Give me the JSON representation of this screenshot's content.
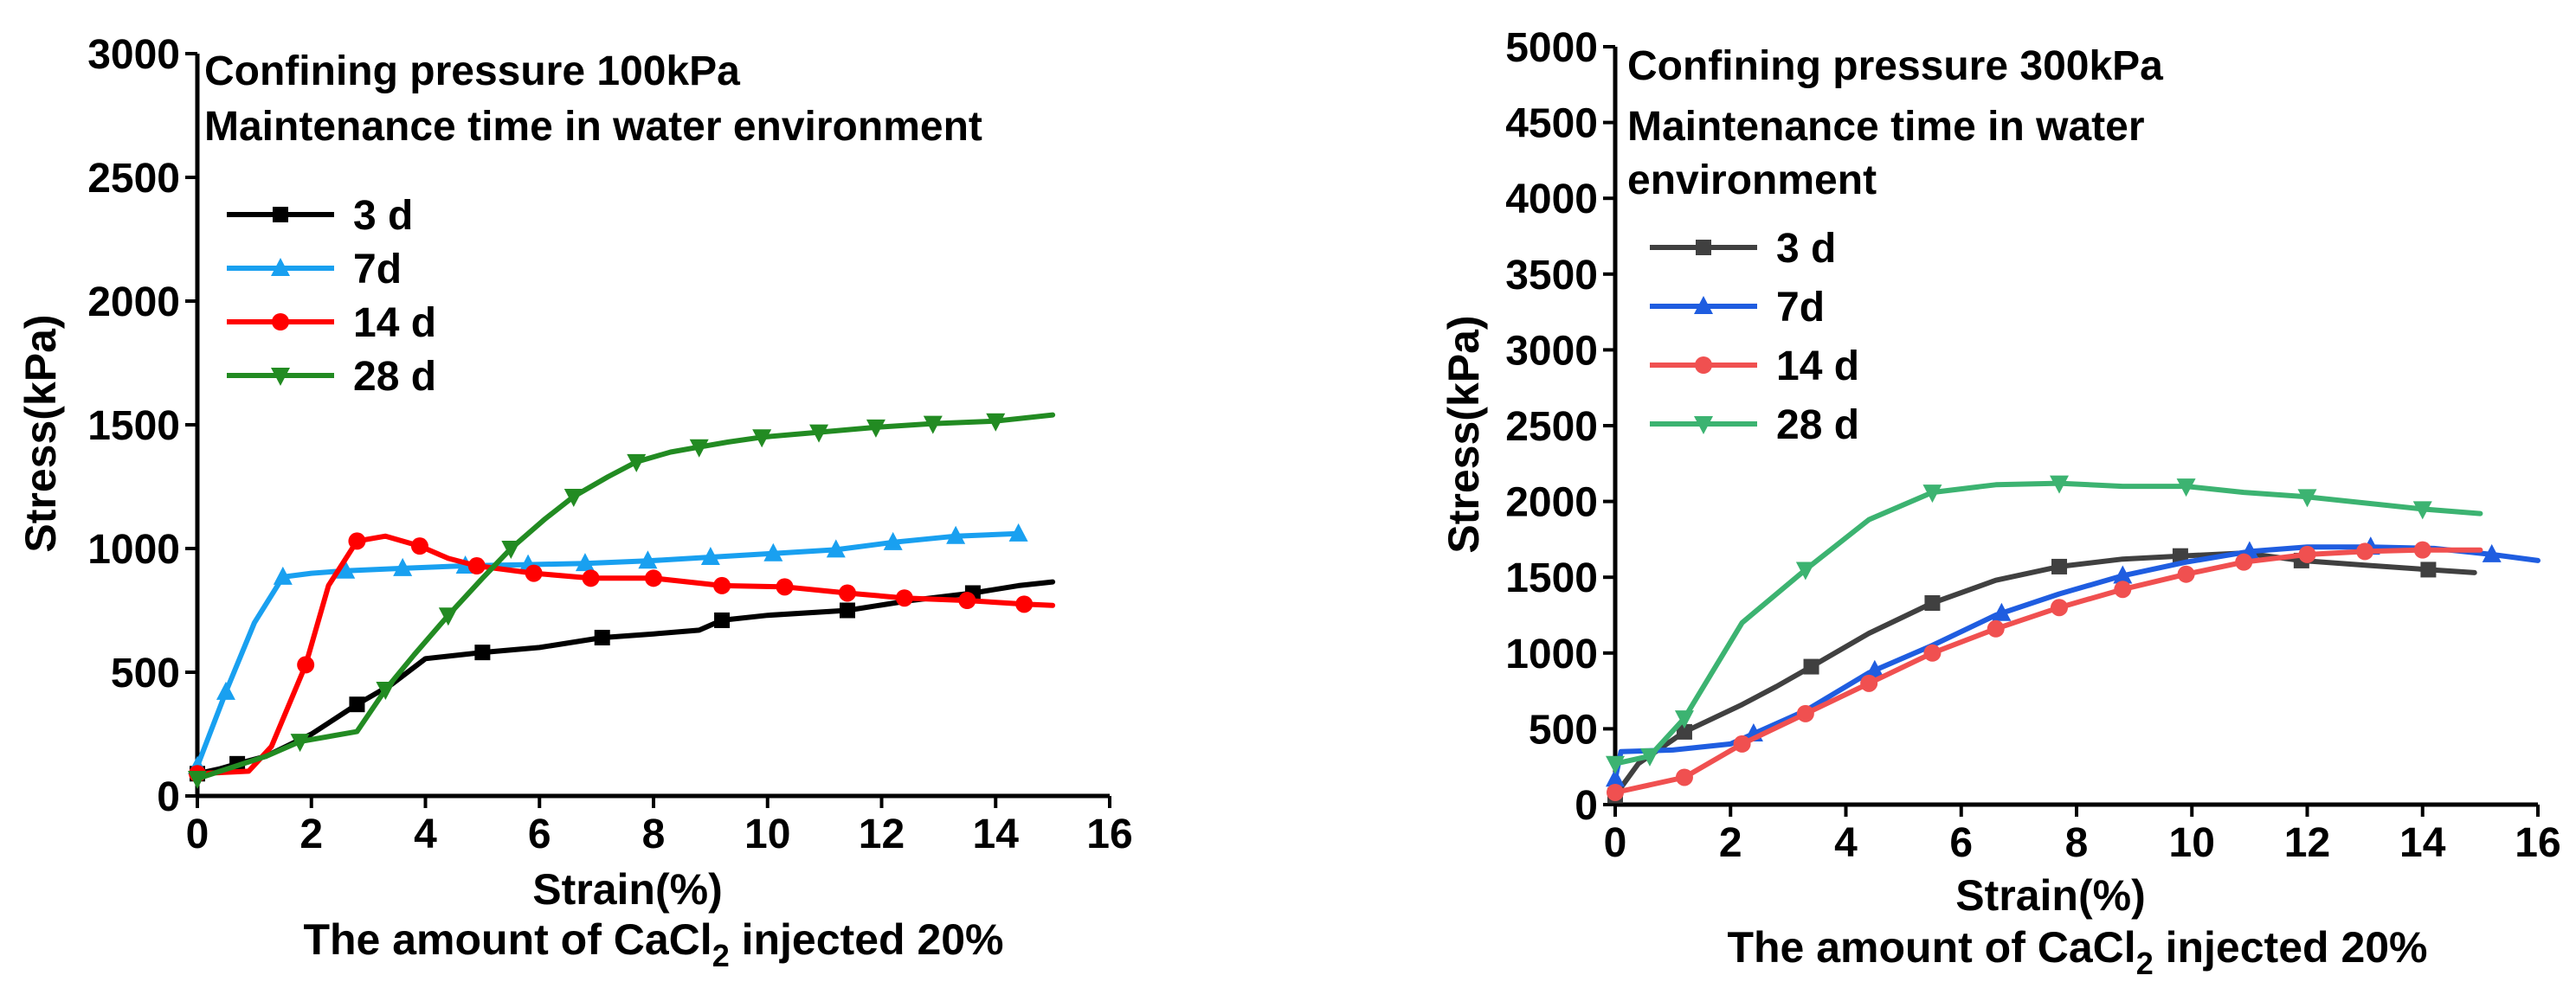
{
  "chart_data": [
    {
      "type": "line",
      "title": "Confining pressure 100kPa",
      "subtitle": "Maintenance time in water environment",
      "subtitle_lines": [
        "Maintenance time in water environment"
      ],
      "xlabel": "Strain(%)",
      "ylabel": "Stress(kPa)",
      "caption": {
        "prefix": "The amount of CaCl",
        "subscript": "2",
        "suffix": " injected 20%"
      },
      "xlim": [
        0,
        16
      ],
      "ylim": [
        0,
        3000
      ],
      "xticks": [
        0,
        2,
        4,
        6,
        8,
        10,
        12,
        14,
        16
      ],
      "yticks": [
        0,
        500,
        1000,
        1500,
        2000,
        2500,
        3000
      ],
      "legend_position": "top-left",
      "series": [
        {
          "name": "3 d",
          "color": "#000000",
          "marker": "square",
          "x": [
            0,
            0.4,
            0.7,
            1.2,
            2,
            2.8,
            3.4,
            4,
            5,
            6,
            7.1,
            8,
            8.8,
            9.2,
            10,
            11.4,
            12.5,
            13.6,
            14.4,
            15
          ],
          "y": [
            90,
            110,
            130,
            160,
            250,
            370,
            450,
            555,
            580,
            600,
            640,
            655,
            670,
            710,
            730,
            750,
            790,
            820,
            850,
            865
          ],
          "markers_x": [
            0,
            0.7,
            2.8,
            5,
            7.1,
            9.2,
            11.4,
            13.6
          ]
        },
        {
          "name": "7d",
          "color": "#19a0f0",
          "marker": "triangle-up",
          "x": [
            0,
            0.5,
            1.0,
            1.5,
            2.0,
            2.6,
            3.6,
            4.7,
            5.8,
            6.8,
            7.9,
            9.0,
            10.1,
            11.2,
            12.2,
            13.3,
            14.4
          ],
          "y": [
            120,
            420,
            700,
            885,
            900,
            910,
            920,
            930,
            935,
            940,
            950,
            965,
            980,
            995,
            1025,
            1050,
            1060
          ],
          "markers_x": [
            0,
            0.5,
            1.5,
            2.6,
            3.6,
            4.7,
            5.8,
            6.8,
            7.9,
            9.0,
            10.1,
            11.2,
            12.2,
            13.3,
            14.4
          ]
        },
        {
          "name": "14 d",
          "color": "#ff0000",
          "marker": "circle",
          "x": [
            0,
            0.9,
            1.3,
            1.9,
            2.3,
            2.8,
            3.3,
            3.9,
            4.4,
            4.9,
            5.9,
            6.9,
            8.0,
            9.2,
            10.3,
            11.4,
            12.4,
            13.5,
            14.5,
            15
          ],
          "y": [
            90,
            100,
            200,
            530,
            850,
            1030,
            1050,
            1010,
            960,
            930,
            900,
            880,
            880,
            850,
            845,
            820,
            800,
            790,
            775,
            770
          ],
          "markers_x": [
            0,
            1.9,
            2.8,
            3.9,
            4.9,
            5.9,
            6.9,
            8.0,
            9.2,
            10.3,
            11.4,
            12.4,
            13.5,
            14.5
          ]
        },
        {
          "name": "28 d",
          "color": "#228b22",
          "marker": "triangle-down",
          "x": [
            0,
            1.2,
            1.8,
            2.8,
            3.3,
            3.8,
            4.4,
            5.0,
            5.5,
            6.1,
            6.6,
            7.2,
            7.7,
            8.3,
            8.8,
            9.3,
            9.9,
            10.9,
            11.9,
            12.9,
            14.0,
            15
          ],
          "y": [
            70,
            160,
            220,
            260,
            430,
            570,
            730,
            880,
            1000,
            1120,
            1210,
            1290,
            1350,
            1390,
            1410,
            1430,
            1450,
            1470,
            1490,
            1505,
            1515,
            1540
          ],
          "markers_x": [
            0,
            1.8,
            3.3,
            4.4,
            5.5,
            6.6,
            7.7,
            8.8,
            9.9,
            10.9,
            11.9,
            12.9,
            14.0
          ]
        }
      ]
    },
    {
      "type": "line",
      "title": "Confining pressure 300kPa",
      "subtitle": "Maintenance time in water environment",
      "subtitle_lines": [
        "Maintenance time in water",
        "environment"
      ],
      "xlabel": "Strain(%)",
      "ylabel": "Stress(kPa)",
      "caption": {
        "prefix": "The amount of CaCl",
        "subscript": "2",
        "suffix": " injected 20%"
      },
      "xlim": [
        0,
        16
      ],
      "ylim": [
        0,
        5000
      ],
      "xticks": [
        0,
        2,
        4,
        6,
        8,
        10,
        12,
        14,
        16
      ],
      "yticks": [
        0,
        500,
        1000,
        1500,
        2000,
        2500,
        3000,
        3500,
        4000,
        4500,
        5000
      ],
      "legend_position": "top-left",
      "series": [
        {
          "name": "3 d",
          "color": "#404040",
          "marker": "square",
          "x": [
            0,
            0.4,
            1.2,
            2.2,
            2.8,
            3.4,
            4.4,
            5.5,
            6.6,
            7.7,
            8.8,
            9.8,
            10.9,
            11.9,
            13.0,
            14.1,
            14.9
          ],
          "y": [
            60,
            270,
            480,
            660,
            780,
            910,
            1130,
            1330,
            1480,
            1570,
            1620,
            1640,
            1660,
            1610,
            1580,
            1550,
            1530
          ],
          "markers_x": [
            0,
            1.2,
            3.4,
            5.5,
            7.7,
            9.8,
            11.9,
            14.1
          ]
        },
        {
          "name": "7d",
          "color": "#1f5de0",
          "marker": "triangle-up",
          "x": [
            0,
            0.1,
            1.0,
            2.0,
            3.3,
            4.4,
            5.5,
            6.6,
            7.7,
            8.8,
            9.9,
            11.0,
            12.0,
            13.1,
            14.2,
            15.2,
            16
          ],
          "y": [
            170,
            350,
            360,
            400,
            620,
            870,
            1050,
            1250,
            1390,
            1510,
            1600,
            1670,
            1700,
            1700,
            1690,
            1650,
            1610
          ],
          "markers_x": [
            0,
            2.4,
            4.5,
            6.7,
            8.8,
            11.0,
            13.1,
            15.2
          ]
        },
        {
          "name": "14 d",
          "color": "#f05050",
          "marker": "circle",
          "x": [
            0,
            1.2,
            2.2,
            3.3,
            4.4,
            5.5,
            6.6,
            7.7,
            8.8,
            9.9,
            10.9,
            12.0,
            13.0,
            14.0,
            15.0
          ],
          "y": [
            80,
            180,
            400,
            600,
            800,
            1000,
            1160,
            1300,
            1420,
            1520,
            1600,
            1650,
            1670,
            1680,
            1680
          ],
          "markers_x": [
            0,
            1.2,
            2.2,
            3.3,
            4.4,
            5.5,
            6.6,
            7.7,
            8.8,
            9.9,
            10.9,
            12.0,
            13.0,
            14.0
          ]
        },
        {
          "name": "28 d",
          "color": "#3cb371",
          "marker": "triangle-down",
          "x": [
            0,
            0.6,
            1.2,
            2.2,
            3.3,
            4.4,
            5.5,
            6.6,
            7.7,
            8.8,
            9.9,
            10.9,
            12.0,
            13.0,
            14.0,
            15.0
          ],
          "y": [
            270,
            320,
            570,
            1200,
            1550,
            1880,
            2060,
            2110,
            2120,
            2100,
            2100,
            2060,
            2030,
            1990,
            1950,
            1920
          ],
          "markers_x": [
            0,
            0.6,
            1.2,
            3.3,
            5.5,
            7.7,
            9.9,
            12.0,
            14.0
          ]
        }
      ]
    }
  ]
}
